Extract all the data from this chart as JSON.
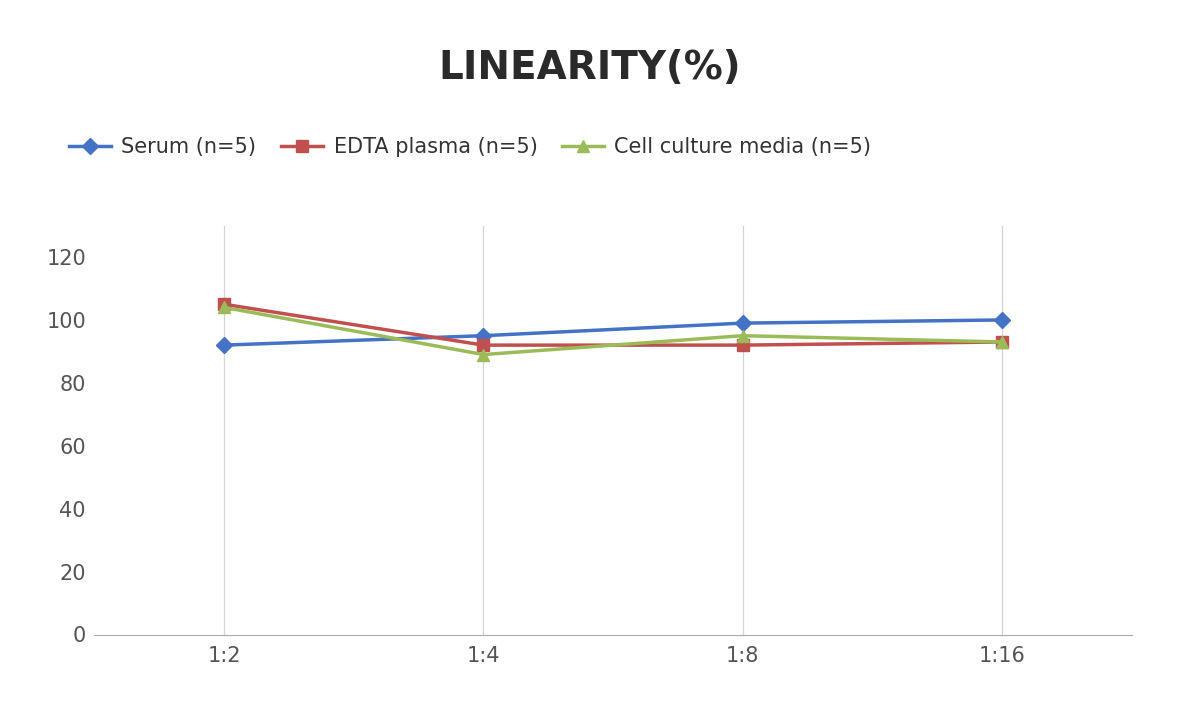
{
  "title": "LINEARITY(%)",
  "title_fontsize": 28,
  "title_fontweight": "bold",
  "x_labels": [
    "1:2",
    "1:4",
    "1:8",
    "1:16"
  ],
  "series": [
    {
      "label": "Serum (n=5)",
      "values": [
        92,
        95,
        99,
        100
      ],
      "color": "#4472C4",
      "marker": "D",
      "marker_size": 8,
      "linewidth": 2.5
    },
    {
      "label": "EDTA plasma (n=5)",
      "values": [
        105,
        92,
        92,
        93
      ],
      "color": "#C0504D",
      "marker": "s",
      "marker_size": 8,
      "linewidth": 2.5
    },
    {
      "label": "Cell culture media (n=5)",
      "values": [
        104,
        89,
        95,
        93
      ],
      "color": "#9BBB59",
      "marker": "^",
      "marker_size": 8,
      "linewidth": 2.5
    }
  ],
  "ylim": [
    0,
    130
  ],
  "yticks": [
    0,
    20,
    40,
    60,
    80,
    100,
    120
  ],
  "background_color": "#ffffff",
  "grid_color": "#d3d3d3",
  "legend_fontsize": 15,
  "tick_fontsize": 15
}
